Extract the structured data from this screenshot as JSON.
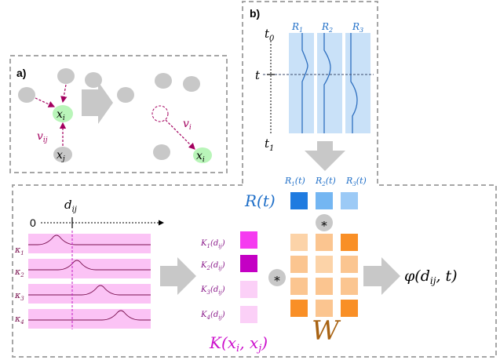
{
  "colors": {
    "panel_border": "#a6a6a6",
    "node_grey": "#c8c8c8",
    "node_green": "#b9f5b9",
    "edge_purple": "#a3005f",
    "band_blue": "#c9e1f8",
    "line_blue": "#2e6fbf",
    "r_label_blue": "#1f6fc8",
    "band_pink": "#fbc3f5",
    "curve_purple": "#7a1150",
    "k_label_purple": "#8a1a8a",
    "k_big_magenta": "#cc11cc",
    "w_brown": "#a86212",
    "arrow_grey": "#c8c8c8"
  },
  "panel_a": {
    "label": "a)",
    "node_xi": "x",
    "node_xi_sub": "i",
    "node_xj": "x",
    "node_xj_sub": "j",
    "edge_vij": "v",
    "edge_vij_sub": "ij",
    "edge_vi": "v",
    "edge_vi_sub": "i",
    "moved_node": "x",
    "moved_node_sub": "i"
  },
  "panel_b": {
    "label": "b)",
    "t0": "t",
    "t0_sub": "0",
    "t": "t",
    "t1": "t",
    "t1_sub": "1",
    "band_labels": [
      {
        "main": "R",
        "sub": "1"
      },
      {
        "main": "R",
        "sub": "2"
      },
      {
        "main": "R",
        "sub": "3"
      }
    ]
  },
  "panel_c": {
    "zero_label": "0",
    "dij_label": "d",
    "dij_sub": "ij",
    "kappa_labels": [
      {
        "main": "κ",
        "sub": "1"
      },
      {
        "main": "κ",
        "sub": "2"
      },
      {
        "main": "κ",
        "sub": "3"
      },
      {
        "main": "κ",
        "sub": "4"
      }
    ],
    "k_labels": [
      {
        "main": "K",
        "idx": "1",
        "arg": "d",
        "argsub": "ij"
      },
      {
        "main": "K",
        "idx": "2",
        "arg": "d",
        "argsub": "ij"
      },
      {
        "main": "K",
        "idx": "3",
        "arg": "d",
        "argsub": "ij"
      },
      {
        "main": "K",
        "idx": "4",
        "arg": "d",
        "argsub": "ij"
      }
    ],
    "k_colors": [
      "#f53cf0",
      "#c400c4",
      "#fbd0f7",
      "#fbd0f7"
    ],
    "r_t_labels": [
      {
        "main": "R",
        "idx": "1",
        "arg": "t"
      },
      {
        "main": "R",
        "idx": "2",
        "arg": "t"
      },
      {
        "main": "R",
        "idx": "3",
        "arg": "t"
      }
    ],
    "r_colors": [
      "#1f7be0",
      "#74b6f2",
      "#9ccaf6"
    ],
    "r_big": "R(t)",
    "star": "∗",
    "w_matrix_colors": [
      [
        "#fcd3a8",
        "#fbc590",
        "#f98f26"
      ],
      [
        "#fbc590",
        "#fcd3a8",
        "#fbc590"
      ],
      [
        "#fbc590",
        "#fbc590",
        "#fbc590"
      ],
      [
        "#f98f26",
        "#fbc590",
        "#f98f26"
      ]
    ],
    "w_label": "W",
    "k_big": "K(x",
    "k_big_i": "i",
    "k_big_mid": ", x",
    "k_big_j": "j",
    "k_big_end": ")",
    "phi_main": "φ(d",
    "phi_sub": "ij",
    "phi_end": ", t)"
  }
}
